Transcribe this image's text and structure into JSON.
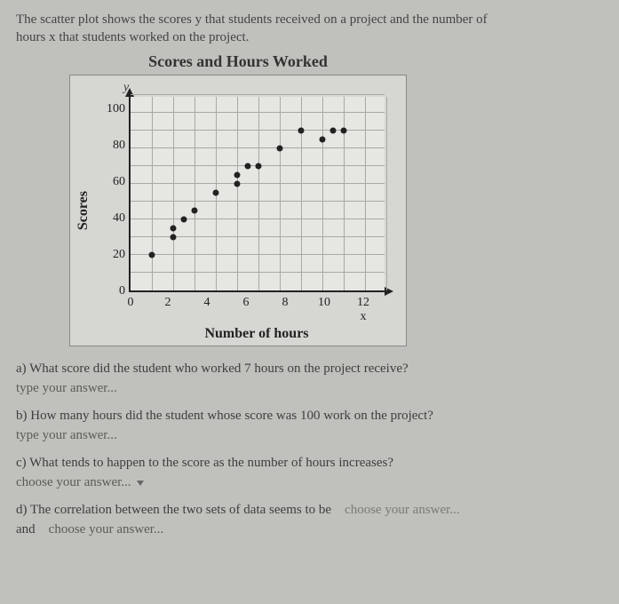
{
  "intro_line1": "The scatter plot shows the scores y that students received on a project and the number of",
  "intro_line2": "hours x that students worked on the project.",
  "chart": {
    "title": "Scores and Hours Worked",
    "y_top": "y",
    "x_end": "12 x",
    "y_label": "Scores",
    "x_label": "Number of hours",
    "xlim": [
      0,
      12
    ],
    "ylim": [
      0,
      110
    ],
    "xtick_step": 2,
    "ytick_step": 20,
    "yticks": [
      "100",
      "80",
      "60",
      "40",
      "20",
      "0"
    ],
    "xticks": [
      "0",
      "2",
      "4",
      "6",
      "8",
      "10"
    ],
    "grid_color": "#a8a8a4",
    "point_color": "#222222",
    "background_color": "#e6e6e2",
    "points": [
      {
        "x": 1,
        "y": 20
      },
      {
        "x": 2,
        "y": 30
      },
      {
        "x": 2,
        "y": 35
      },
      {
        "x": 2.5,
        "y": 40
      },
      {
        "x": 3,
        "y": 45
      },
      {
        "x": 4,
        "y": 55
      },
      {
        "x": 5,
        "y": 60
      },
      {
        "x": 5,
        "y": 65
      },
      {
        "x": 5.5,
        "y": 70
      },
      {
        "x": 6,
        "y": 70
      },
      {
        "x": 7,
        "y": 80
      },
      {
        "x": 8,
        "y": 90
      },
      {
        "x": 9,
        "y": 85
      },
      {
        "x": 9.5,
        "y": 90
      },
      {
        "x": 10,
        "y": 90
      }
    ]
  },
  "questions": {
    "a": "a) What score did the student who worked 7 hours on the project receive?",
    "a_answer": "type your answer...",
    "b": "b) How many hours did the student whose score was 100 work on the project?",
    "b_answer": "type your answer...",
    "c": "c) What tends to happen to the score as the number of hours increases?",
    "c_answer": "choose your answer...",
    "d_prefix": "d) The correlation between the two sets of data seems to be",
    "d_choice1": "choose your answer...",
    "d_join": "and",
    "d_choice2": "choose your answer..."
  }
}
